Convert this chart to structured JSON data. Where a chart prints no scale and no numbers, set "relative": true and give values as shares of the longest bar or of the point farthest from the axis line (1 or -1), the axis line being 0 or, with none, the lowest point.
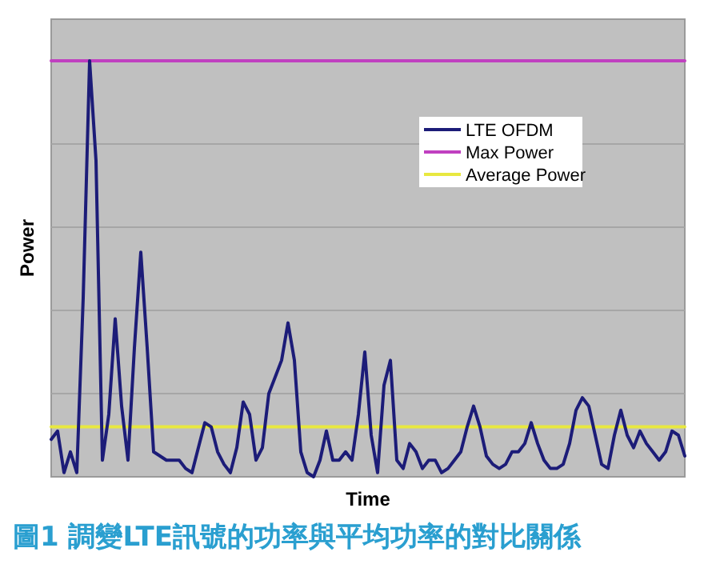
{
  "chart_data": {
    "type": "line",
    "relative": true,
    "xlabel": "Time",
    "ylabel": "Power",
    "grid": "y",
    "legend": "top right",
    "annotations": [
      "圖1 調變LTE訊號的功率與平均功率的對比關係"
    ],
    "categories": [
      null,
      null,
      null,
      null,
      null,
      null,
      null,
      null,
      null,
      null,
      null,
      null,
      null,
      null,
      null,
      null,
      null,
      null,
      null,
      null,
      null,
      null,
      null,
      null,
      null,
      null,
      null,
      null,
      null,
      null,
      null,
      null,
      null,
      null,
      null,
      null,
      null,
      null,
      null,
      null,
      null,
      null,
      null,
      null,
      null,
      null,
      null,
      null,
      null,
      null,
      null,
      null,
      null,
      null,
      null,
      null,
      null,
      null,
      null,
      null,
      null,
      null,
      null,
      null,
      null,
      null,
      null,
      null,
      null,
      null,
      null,
      null,
      null,
      null,
      null,
      null,
      null,
      null,
      null,
      null,
      null,
      null,
      null,
      null,
      null,
      null,
      null,
      null,
      null,
      null,
      null,
      null,
      null,
      null,
      null,
      null,
      null,
      null,
      null,
      null
    ],
    "series": [
      {
        "name": "LTE OFDM",
        "color": "#1c1c78",
        "values": [
          0.09,
          0.11,
          0.01,
          0.06,
          0.01,
          0.43,
          1,
          0.76,
          0.04,
          0.15,
          0.38,
          0.17,
          0.04,
          0.31,
          0.54,
          0.31,
          0.06,
          0.05,
          0.04,
          0.04,
          0.04,
          0.02,
          0.01,
          0.07,
          0.13,
          0.12,
          0.06,
          0.03,
          0.01,
          0.07,
          0.18,
          0.15,
          0.04,
          0.07,
          0.2,
          0.24,
          0.28,
          0.37,
          0.28,
          0.06,
          0.01,
          0,
          0.04,
          0.11,
          0.04,
          0.04,
          0.06,
          0.04,
          0.15,
          0.3,
          0.1,
          0.01,
          0.22,
          0.28,
          0.04,
          0.02,
          0.08,
          0.06,
          0.02,
          0.04,
          0.04,
          0.01,
          0.02,
          0.04,
          0.06,
          0.12,
          0.17,
          0.12,
          0.05,
          0.03,
          0.02,
          0.03,
          0.06,
          0.06,
          0.08,
          0.13,
          0.08,
          0.04,
          0.02,
          0.02,
          0.03,
          0.08,
          0.16,
          0.19,
          0.17,
          0.1,
          0.03,
          0.02,
          0.1,
          0.16,
          0.1,
          0.07,
          0.11,
          0.08,
          0.06,
          0.04,
          0.06,
          0.11,
          0.1,
          0.05
        ]
      },
      {
        "name": "Max Power",
        "color": "#c040c0",
        "values": [
          1,
          1,
          1,
          1,
          1,
          1,
          1,
          1,
          1,
          1,
          1,
          1,
          1,
          1,
          1,
          1,
          1,
          1,
          1,
          1,
          1,
          1,
          1,
          1,
          1,
          1,
          1,
          1,
          1,
          1,
          1,
          1,
          1,
          1,
          1,
          1,
          1,
          1,
          1,
          1,
          1,
          1,
          1,
          1,
          1,
          1,
          1,
          1,
          1,
          1,
          1,
          1,
          1,
          1,
          1,
          1,
          1,
          1,
          1,
          1,
          1,
          1,
          1,
          1,
          1,
          1,
          1,
          1,
          1,
          1,
          1,
          1,
          1,
          1,
          1,
          1,
          1,
          1,
          1,
          1,
          1,
          1,
          1,
          1,
          1,
          1,
          1,
          1,
          1,
          1,
          1,
          1,
          1,
          1,
          1,
          1,
          1,
          1,
          1,
          1
        ]
      },
      {
        "name": "Average Power",
        "color": "#e8e840",
        "values": [
          0.12,
          0.12,
          0.12,
          0.12,
          0.12,
          0.12,
          0.12,
          0.12,
          0.12,
          0.12,
          0.12,
          0.12,
          0.12,
          0.12,
          0.12,
          0.12,
          0.12,
          0.12,
          0.12,
          0.12,
          0.12,
          0.12,
          0.12,
          0.12,
          0.12,
          0.12,
          0.12,
          0.12,
          0.12,
          0.12,
          0.12,
          0.12,
          0.12,
          0.12,
          0.12,
          0.12,
          0.12,
          0.12,
          0.12,
          0.12,
          0.12,
          0.12,
          0.12,
          0.12,
          0.12,
          0.12,
          0.12,
          0.12,
          0.12,
          0.12,
          0.12,
          0.12,
          0.12,
          0.12,
          0.12,
          0.12,
          0.12,
          0.12,
          0.12,
          0.12,
          0.12,
          0.12,
          0.12,
          0.12,
          0.12,
          0.12,
          0.12,
          0.12,
          0.12,
          0.12,
          0.12,
          0.12,
          0.12,
          0.12,
          0.12,
          0.12,
          0.12,
          0.12,
          0.12,
          0.12,
          0.12,
          0.12,
          0.12,
          0.12,
          0.12,
          0.12,
          0.12,
          0.12,
          0.12,
          0.12,
          0.12,
          0.12,
          0.12,
          0.12,
          0.12,
          0.12,
          0.12,
          0.12,
          0.12,
          0.12
        ]
      }
    ]
  }
}
